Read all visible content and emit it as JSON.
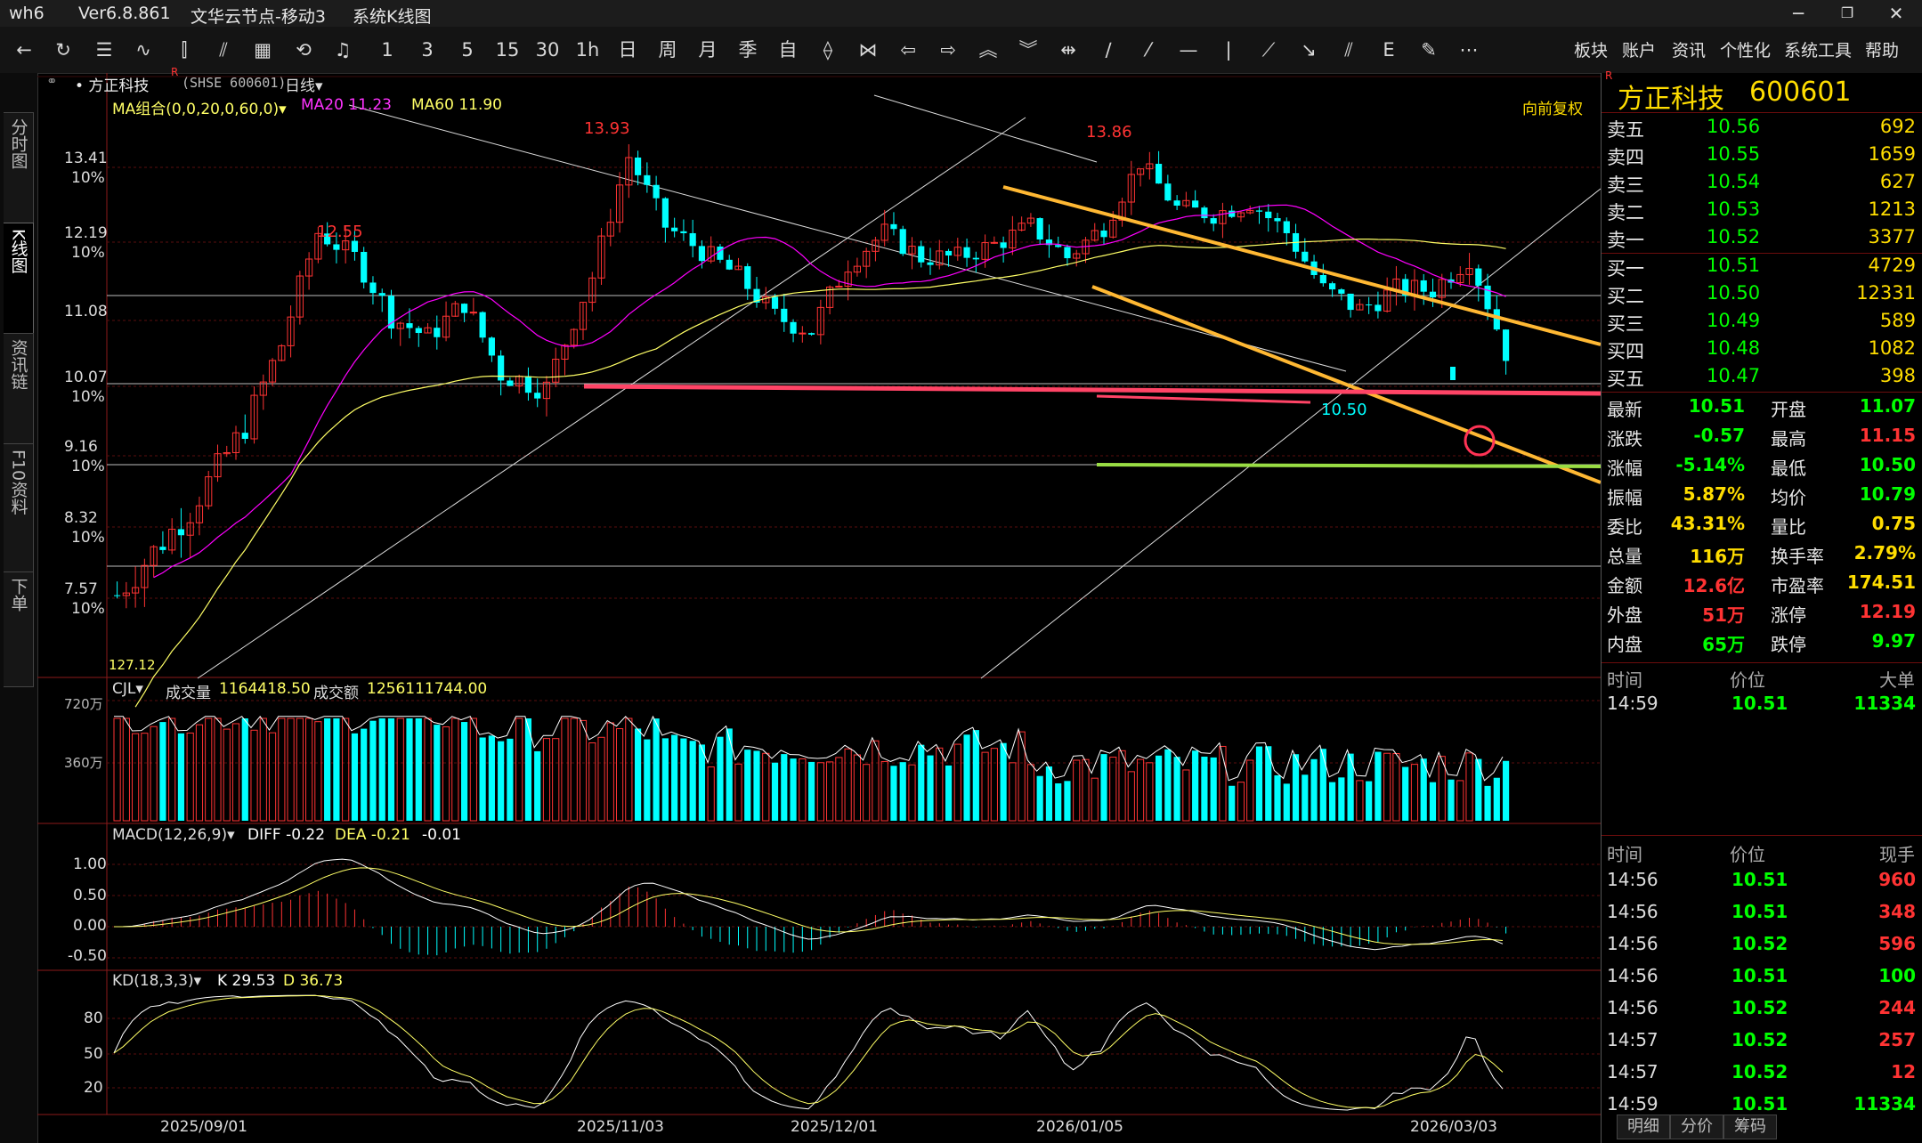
{
  "window": {
    "app": "wh6",
    "version": "Ver6.8.861",
    "server": "文华云节点-移动3",
    "view": "系统K线图"
  },
  "menu": [
    "板块",
    "账户",
    "资讯",
    "个性化",
    "系统工具",
    "帮助"
  ],
  "toolbar_labels": [
    "1",
    "3",
    "5",
    "15",
    "30",
    "1h",
    "日",
    "周",
    "月",
    "季",
    "自"
  ],
  "left_tabs": [
    "分时图",
    "K线图",
    "资讯链",
    "F10资料",
    "下单"
  ],
  "header": {
    "name_line": "• 方正科技",
    "code": "(SHSE 600601)",
    "period": "日线▾",
    "ma_group": "MA组合(0,0,20,0,60,0)▾",
    "ma20": "MA20 11.23",
    "ma60": "MA60 11.90",
    "fuquan": "向前复权"
  },
  "price_axis": [
    {
      "v": "13.41",
      "p": "10%"
    },
    {
      "v": "12.19",
      "p": "10%"
    },
    {
      "v": "11.08",
      "p": ""
    },
    {
      "v": "10.07",
      "p": "10%"
    },
    {
      "v": "9.16",
      "p": "10%"
    },
    {
      "v": "8.32",
      "p": "10%"
    },
    {
      "v": "7.57",
      "p": "10%"
    }
  ],
  "chart_marks": {
    "high1": "12.55",
    "high2": "13.93",
    "high3": "13.86",
    "low1": "10.50",
    "low0": "127.12"
  },
  "volume": {
    "title": "CJL▾",
    "vol_label": "成交量",
    "vol_value": "1164418.50",
    "amt_label": "成交额",
    "amt_value": "1256111744.00",
    "axis": [
      "720万",
      "360万"
    ]
  },
  "macd": {
    "title": "MACD(12,26,9)▾",
    "diff": "DIFF -0.22",
    "dea": "DEA -0.21",
    "macd": "-0.01",
    "axis": [
      "1.00",
      "0.50",
      "0.00",
      "-0.50"
    ]
  },
  "kd": {
    "title": "KD(18,3,3)▾",
    "k": "K 29.53",
    "d": "D 36.73",
    "axis": [
      "80",
      "50",
      "20"
    ]
  },
  "dates": [
    "2025/09/01",
    "2025/11/03",
    "2025/12/01",
    "2026/01/05",
    "2026/03/03"
  ],
  "quote": {
    "title_name": "方正科技",
    "title_code": "600601",
    "asks": [
      {
        "k": "卖五",
        "p": "10.56",
        "v": "692"
      },
      {
        "k": "卖四",
        "p": "10.55",
        "v": "1659"
      },
      {
        "k": "卖三",
        "p": "10.54",
        "v": "627"
      },
      {
        "k": "卖二",
        "p": "10.53",
        "v": "1213"
      },
      {
        "k": "卖一",
        "p": "10.52",
        "v": "3377"
      }
    ],
    "bids": [
      {
        "k": "买一",
        "p": "10.51",
        "v": "4729"
      },
      {
        "k": "买二",
        "p": "10.50",
        "v": "12331"
      },
      {
        "k": "买三",
        "p": "10.49",
        "v": "589"
      },
      {
        "k": "买四",
        "p": "10.48",
        "v": "1082"
      },
      {
        "k": "买五",
        "p": "10.47",
        "v": "398"
      }
    ],
    "stats": [
      {
        "k1": "最新",
        "v1": "10.51",
        "c1": "#00ff00",
        "k2": "开盘",
        "v2": "11.07",
        "c2": "#00ff00"
      },
      {
        "k1": "涨跌",
        "v1": "-0.57",
        "c1": "#00ff00",
        "k2": "最高",
        "v2": "11.15",
        "c2": "#ff3333"
      },
      {
        "k1": "涨幅",
        "v1": "-5.14%",
        "c1": "#00ff00",
        "k2": "最低",
        "v2": "10.50",
        "c2": "#00ff00"
      },
      {
        "k1": "振幅",
        "v1": "5.87%",
        "c1": "#ffdd00",
        "k2": "均价",
        "v2": "10.79",
        "c2": "#00ff00"
      },
      {
        "k1": "委比",
        "v1": "43.31%",
        "c1": "#ffdd00",
        "k2": "量比",
        "v2": "0.75",
        "c2": "#ffdd00"
      },
      {
        "k1": "总量",
        "v1": "116万",
        "c1": "#ffdd00",
        "k2": "换手率",
        "v2": "2.79%",
        "c2": "#ffdd00"
      },
      {
        "k1": "金额",
        "v1": "12.6亿",
        "c1": "#ff3333",
        "k2": "市盈率",
        "v2": "174.51",
        "c2": "#ffdd00"
      },
      {
        "k1": "外盘",
        "v1": "51万",
        "c1": "#ff3333",
        "k2": "涨停",
        "v2": "12.19",
        "c2": "#ff3333"
      },
      {
        "k1": "内盘",
        "v1": "65万",
        "c1": "#00ff00",
        "k2": "跌停",
        "v2": "9.97",
        "c2": "#00ff00"
      }
    ],
    "big_header": {
      "t": "时间",
      "p": "价位",
      "v": "大单"
    },
    "big_rows": [
      {
        "t": "14:59",
        "p": "10.51",
        "v": "11334"
      }
    ],
    "tick_header": {
      "t": "时间",
      "p": "价位",
      "v": "现手"
    },
    "ticks": [
      {
        "t": "14:56",
        "p": "10.51",
        "v": "960",
        "c": "#ff3333"
      },
      {
        "t": "14:56",
        "p": "10.51",
        "v": "348",
        "c": "#ff3333"
      },
      {
        "t": "14:56",
        "p": "10.52",
        "v": "596",
        "c": "#ff3333"
      },
      {
        "t": "14:56",
        "p": "10.51",
        "v": "100",
        "c": "#00ff00"
      },
      {
        "t": "14:56",
        "p": "10.52",
        "v": "244",
        "c": "#ff3333"
      },
      {
        "t": "14:57",
        "p": "10.52",
        "v": "257",
        "c": "#ff3333"
      },
      {
        "t": "14:57",
        "p": "10.52",
        "v": "12",
        "c": "#ff3333"
      },
      {
        "t": "14:59",
        "p": "10.51",
        "v": "11334",
        "c": "#00ff00"
      }
    ],
    "bottom_tabs": [
      "明细",
      "分价",
      "筹码"
    ]
  },
  "colors": {
    "up": "#ff3333",
    "down": "#00ffff",
    "ma20": "#ff00ff",
    "ma60": "#ffff66",
    "trend": "#ffb833",
    "support": "#ff4466",
    "green_line": "#99dd44"
  }
}
